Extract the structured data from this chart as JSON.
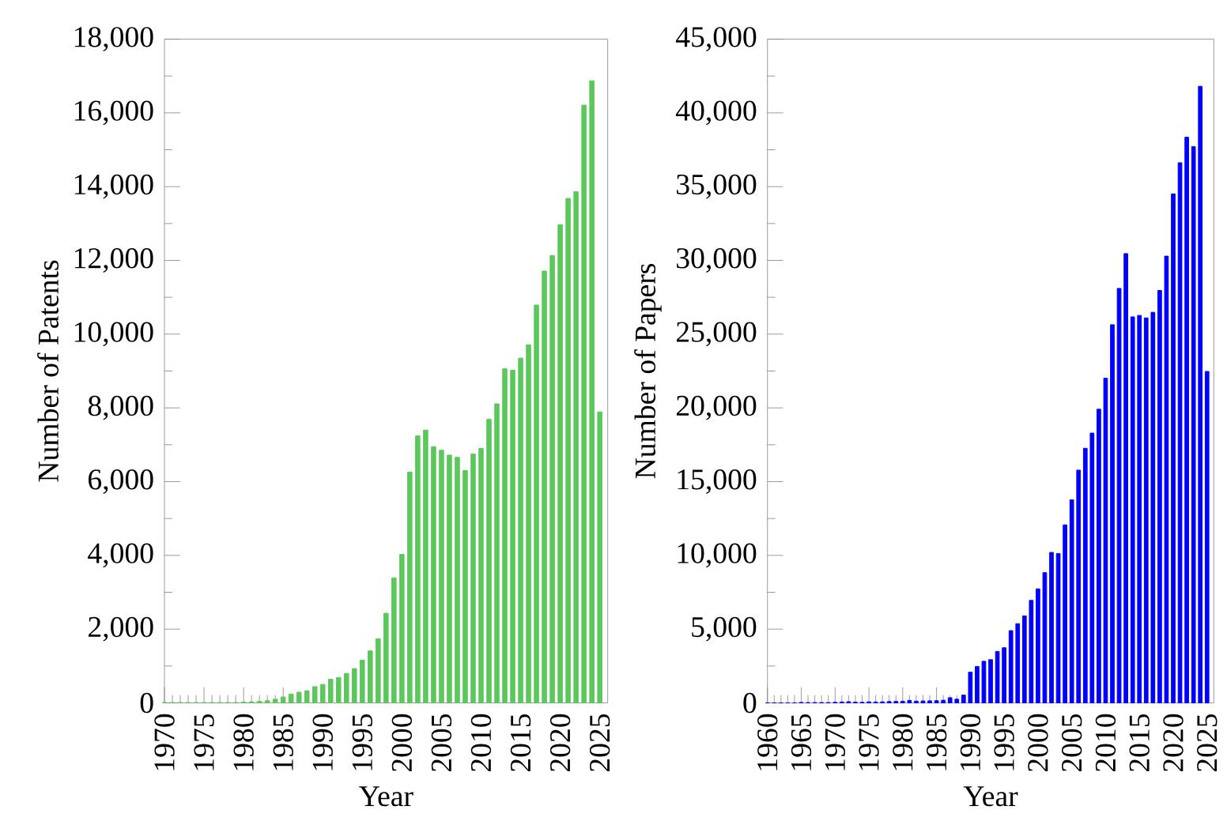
{
  "chart_data": [
    {
      "type": "bar",
      "xlabel": "Year",
      "ylabel": "Number of Patents",
      "color": "#5ac85a",
      "x": [
        1970,
        1971,
        1972,
        1973,
        1974,
        1975,
        1976,
        1977,
        1978,
        1979,
        1980,
        1981,
        1982,
        1983,
        1984,
        1985,
        1986,
        1987,
        1988,
        1989,
        1990,
        1991,
        1992,
        1993,
        1994,
        1995,
        1996,
        1997,
        1998,
        1999,
        2000,
        2001,
        2002,
        2003,
        2004,
        2005,
        2006,
        2007,
        2008,
        2009,
        2010,
        2011,
        2012,
        2013,
        2014,
        2015,
        2016,
        2017,
        2018,
        2019,
        2020,
        2021,
        2022,
        2023,
        2024,
        2025
      ],
      "values": [
        10,
        10,
        10,
        10,
        10,
        10,
        10,
        10,
        10,
        10,
        20,
        30,
        40,
        60,
        100,
        160,
        240,
        290,
        330,
        440,
        500,
        640,
        690,
        800,
        930,
        1160,
        1410,
        1740,
        2430,
        3390,
        4030,
        6260,
        7240,
        7400,
        6950,
        6850,
        6720,
        6660,
        6300,
        6750,
        6900,
        7690,
        8110,
        9060,
        9020,
        9350,
        9710,
        10790,
        11710,
        12130,
        12970,
        13680,
        13860,
        16210,
        16870,
        7890
      ],
      "xlim": [
        1970,
        2026
      ],
      "xticks": [
        1970,
        1975,
        1980,
        1985,
        1990,
        1995,
        2000,
        2005,
        2010,
        2015,
        2020,
        2025
      ],
      "ylim": [
        0,
        18000
      ],
      "yticks": [
        {
          "value": 0,
          "label": "0"
        },
        {
          "value": 2000,
          "label": "2,000"
        },
        {
          "value": 4000,
          "label": "4,000"
        },
        {
          "value": 6000,
          "label": "6,000"
        },
        {
          "value": 8000,
          "label": "8,000"
        },
        {
          "value": 10000,
          "label": "10,000"
        },
        {
          "value": 12000,
          "label": "12,000"
        },
        {
          "value": 14000,
          "label": "14,000"
        },
        {
          "value": 16000,
          "label": "16,000"
        },
        {
          "value": 18000,
          "label": "18,000"
        }
      ]
    },
    {
      "type": "bar",
      "xlabel": "Year",
      "ylabel": "Number of Papers",
      "color": "#0000ff",
      "x": [
        1960,
        1961,
        1962,
        1963,
        1964,
        1965,
        1966,
        1967,
        1968,
        1969,
        1970,
        1971,
        1972,
        1973,
        1974,
        1975,
        1976,
        1977,
        1978,
        1979,
        1980,
        1981,
        1982,
        1983,
        1984,
        1985,
        1986,
        1987,
        1988,
        1989,
        1990,
        1991,
        1992,
        1993,
        1994,
        1995,
        1996,
        1997,
        1998,
        1999,
        2000,
        2001,
        2002,
        2003,
        2004,
        2005,
        2006,
        2007,
        2008,
        2009,
        2010,
        2011,
        2012,
        2013,
        2014,
        2015,
        2016,
        2017,
        2018,
        2019,
        2020,
        2021,
        2022,
        2023,
        2024,
        2025
      ],
      "values": [
        0,
        0,
        0,
        0,
        0,
        30,
        20,
        20,
        20,
        20,
        40,
        60,
        80,
        50,
        40,
        70,
        60,
        70,
        90,
        100,
        110,
        170,
        120,
        130,
        140,
        150,
        180,
        350,
        250,
        530,
        2080,
        2470,
        2820,
        2930,
        3490,
        3740,
        4900,
        5370,
        5900,
        6950,
        7730,
        8830,
        10200,
        10130,
        12070,
        13770,
        15780,
        17260,
        18290,
        19910,
        22010,
        25640,
        28100,
        30460,
        26170,
        26270,
        26100,
        26480,
        27960,
        30290,
        34510,
        36620,
        38350,
        37710,
        41800,
        22470
      ],
      "xlim": [
        1960,
        2026
      ],
      "xticks": [
        1960,
        1965,
        1970,
        1975,
        1980,
        1985,
        1990,
        1995,
        2000,
        2005,
        2010,
        2015,
        2020,
        2025
      ],
      "ylim": [
        0,
        45000
      ],
      "yticks": [
        {
          "value": 0,
          "label": "0"
        },
        {
          "value": 5000,
          "label": "5,000"
        },
        {
          "value": 10000,
          "label": "10,000"
        },
        {
          "value": 15000,
          "label": "15,000"
        },
        {
          "value": 20000,
          "label": "20,000"
        },
        {
          "value": 25000,
          "label": "25,000"
        },
        {
          "value": 30000,
          "label": "30,000"
        },
        {
          "value": 35000,
          "label": "35,000"
        },
        {
          "value": 40000,
          "label": "40,000"
        },
        {
          "value": 45000,
          "label": "45,000"
        }
      ]
    }
  ]
}
